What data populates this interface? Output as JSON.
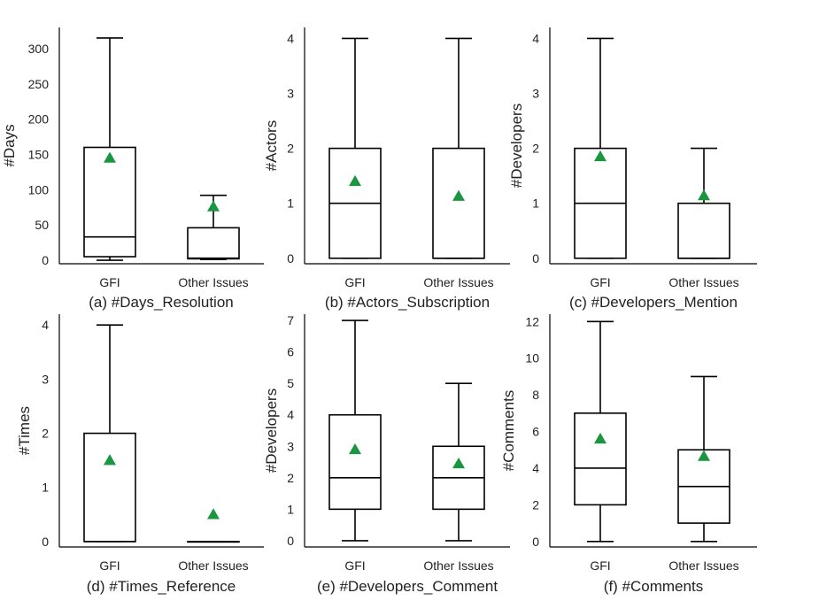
{
  "colors": {
    "mean_marker": "#1a9641",
    "box_stroke": "#000000",
    "axis": "#000000",
    "text": "#222222"
  },
  "chart_data": [
    {
      "type": "box",
      "title": "(a) #Days_Resolution",
      "ylabel": "#Days",
      "ylim": [
        -5,
        330
      ],
      "yticks": [
        0,
        50,
        100,
        150,
        200,
        250,
        300
      ],
      "categories": [
        "GFI",
        "Other Issues"
      ],
      "boxes": [
        {
          "category": "GFI",
          "whisker_low": 0,
          "q1": 5,
          "median": 33,
          "q3": 160,
          "whisker_high": 315,
          "mean": 145
        },
        {
          "category": "Other Issues",
          "whisker_low": 1,
          "q1": 2,
          "median": 3,
          "q3": 46,
          "whisker_high": 92,
          "mean": 76
        }
      ]
    },
    {
      "type": "box",
      "title": "(b) #Actors_Subscription",
      "ylabel": "#Actors",
      "ylim": [
        -0.1,
        4.2
      ],
      "yticks": [
        0,
        1,
        2,
        3,
        4
      ],
      "categories": [
        "GFI",
        "Other Issues"
      ],
      "boxes": [
        {
          "category": "GFI",
          "whisker_low": 0,
          "q1": 0,
          "median": 1,
          "q3": 2,
          "whisker_high": 4,
          "mean": 1.4
        },
        {
          "category": "Other Issues",
          "whisker_low": 0,
          "q1": 0,
          "median": 0,
          "q3": 2,
          "whisker_high": 4,
          "mean": 1.13
        }
      ]
    },
    {
      "type": "box",
      "title": "(c) #Developers_Mention",
      "ylabel": "#Developers",
      "ylim": [
        -0.1,
        4.2
      ],
      "yticks": [
        0,
        1,
        2,
        3,
        4
      ],
      "categories": [
        "GFI",
        "Other Issues"
      ],
      "boxes": [
        {
          "category": "GFI",
          "whisker_low": 0,
          "q1": 0,
          "median": 1,
          "q3": 2,
          "whisker_high": 4,
          "mean": 1.85
        },
        {
          "category": "Other Issues",
          "whisker_low": 0,
          "q1": 0,
          "median": 0,
          "q3": 1,
          "whisker_high": 2,
          "mean": 1.14
        }
      ]
    },
    {
      "type": "box",
      "title": "(d) #Times_Reference",
      "ylabel": "#Times",
      "ylim": [
        -0.1,
        4.2
      ],
      "yticks": [
        0,
        1,
        2,
        3,
        4
      ],
      "categories": [
        "GFI",
        "Other Issues"
      ],
      "boxes": [
        {
          "category": "GFI",
          "whisker_low": 0,
          "q1": 0,
          "median": 0,
          "q3": 2,
          "whisker_high": 4,
          "mean": 1.5
        },
        {
          "category": "Other Issues",
          "whisker_low": 0,
          "q1": 0,
          "median": 0,
          "q3": 0,
          "whisker_high": 0,
          "mean": 0.5
        }
      ]
    },
    {
      "type": "box",
      "title": "(e) #Developers_Comment",
      "ylabel": "#Developers",
      "ylim": [
        -0.2,
        7.2
      ],
      "yticks": [
        0,
        1,
        2,
        3,
        4,
        5,
        6,
        7
      ],
      "categories": [
        "GFI",
        "Other Issues"
      ],
      "boxes": [
        {
          "category": "GFI",
          "whisker_low": 0,
          "q1": 1,
          "median": 2,
          "q3": 4,
          "whisker_high": 7,
          "mean": 2.9
        },
        {
          "category": "Other Issues",
          "whisker_low": 0,
          "q1": 1,
          "median": 2,
          "q3": 3,
          "whisker_high": 5,
          "mean": 2.45
        }
      ]
    },
    {
      "type": "box",
      "title": "(f) #Comments",
      "ylabel": "#Comments",
      "ylim": [
        -0.3,
        12.4
      ],
      "yticks": [
        0,
        2,
        4,
        6,
        8,
        10,
        12
      ],
      "categories": [
        "GFI",
        "Other Issues"
      ],
      "boxes": [
        {
          "category": "GFI",
          "whisker_low": 0,
          "q1": 2,
          "median": 4,
          "q3": 7,
          "whisker_high": 12,
          "mean": 5.6
        },
        {
          "category": "Other Issues",
          "whisker_low": 0,
          "q1": 1,
          "median": 3,
          "q3": 5,
          "whisker_high": 9,
          "mean": 4.65
        }
      ]
    }
  ]
}
